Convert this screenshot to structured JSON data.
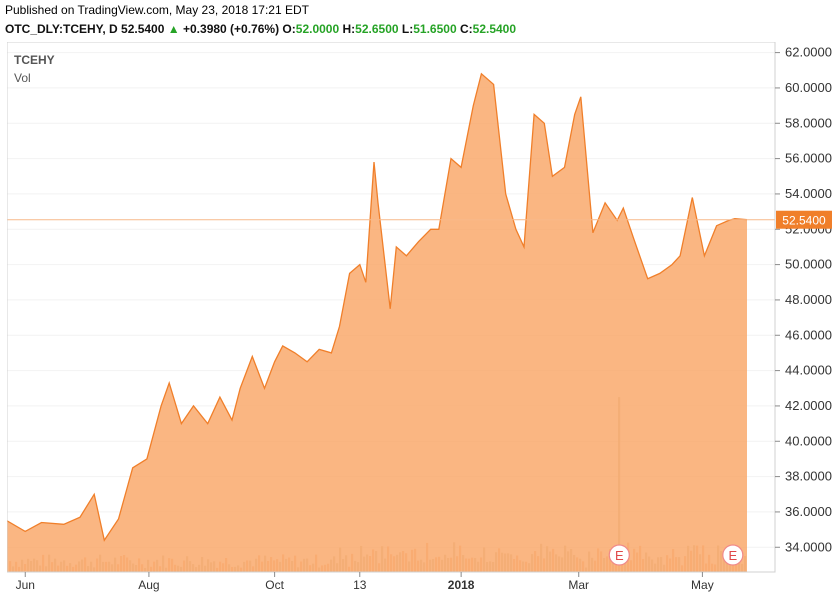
{
  "header": {
    "published": "Published on TradingView.com, May 23, 2018 17:21 EDT",
    "symbol": "OTC_DLY:TCEHY, D",
    "last": "52.5400",
    "change_arrow": "▲",
    "change": "+0.3980 (+0.76%)",
    "o_label": "O:",
    "o_value": "52.0000",
    "h_label": "H:",
    "h_value": "52.6500",
    "l_label": "L:",
    "l_value": "51.6500",
    "c_label": "C:",
    "c_value": "52.5400"
  },
  "legend": {
    "ticker": "TCEHY",
    "vol": "Vol"
  },
  "colors": {
    "area_fill": "#f9a96c",
    "area_line": "#f07f2a",
    "price_tag": "#f07f2a",
    "up": "#26a326"
  },
  "chart_data": {
    "type": "area",
    "ylim": [
      32.6,
      62.6
    ],
    "y_ticks": [
      "62.0000",
      "60.0000",
      "58.0000",
      "56.0000",
      "54.0000",
      "52.0000",
      "50.0000",
      "48.0000",
      "46.0000",
      "44.0000",
      "42.0000",
      "40.0000",
      "38.0000",
      "36.0000",
      "34.0000"
    ],
    "y_tick_values": [
      62,
      60,
      58,
      56,
      54,
      52,
      50,
      48,
      46,
      44,
      42,
      40,
      38,
      36,
      34
    ],
    "x_range": [
      "2017-05-23",
      "2018-05-23"
    ],
    "x_ticks": [
      {
        "label": "Jun",
        "date": "2017-06-01"
      },
      {
        "label": "Aug",
        "date": "2017-08-01"
      },
      {
        "label": "Oct",
        "date": "2017-10-02"
      },
      {
        "label": "13",
        "date": "2017-11-13"
      },
      {
        "label": "2018",
        "date": "2018-01-02",
        "bold": true
      },
      {
        "label": "Mar",
        "date": "2018-03-01"
      },
      {
        "label": "May",
        "date": "2018-05-01"
      }
    ],
    "last_price_label": "52.5400",
    "last_price": 52.54,
    "series": [
      {
        "x": [
          "2017-05-23",
          "2017-06-01",
          "2017-06-09",
          "2017-06-20",
          "2017-06-28",
          "2017-07-05",
          "2017-07-10",
          "2017-07-17",
          "2017-07-24",
          "2017-07-31",
          "2017-08-07",
          "2017-08-11",
          "2017-08-17",
          "2017-08-23",
          "2017-08-30",
          "2017-09-05",
          "2017-09-11",
          "2017-09-15",
          "2017-09-21",
          "2017-09-27",
          "2017-10-02",
          "2017-10-06",
          "2017-10-12",
          "2017-10-18",
          "2017-10-24",
          "2017-10-30",
          "2017-11-03",
          "2017-11-08",
          "2017-11-13",
          "2017-11-16",
          "2017-11-20",
          "2017-11-22",
          "2017-11-28",
          "2017-12-01",
          "2017-12-06",
          "2017-12-12",
          "2017-12-18",
          "2017-12-22",
          "2017-12-28",
          "2018-01-02",
          "2018-01-08",
          "2018-01-12",
          "2018-01-18",
          "2018-01-24",
          "2018-01-29",
          "2018-02-02",
          "2018-02-07",
          "2018-02-12",
          "2018-02-16",
          "2018-02-22",
          "2018-02-27",
          "2018-03-02",
          "2018-03-08",
          "2018-03-14",
          "2018-03-20",
          "2018-03-23",
          "2018-03-28",
          "2018-04-04",
          "2018-04-10",
          "2018-04-16",
          "2018-04-20",
          "2018-04-26",
          "2018-05-02",
          "2018-05-08",
          "2018-05-14",
          "2018-05-17",
          "2018-05-23"
        ],
        "y": [
          35.5,
          34.9,
          35.4,
          35.3,
          35.7,
          37.0,
          34.4,
          35.6,
          38.5,
          39.0,
          42.0,
          43.3,
          41.0,
          42.0,
          41.0,
          42.5,
          41.2,
          43.0,
          44.8,
          43.0,
          44.5,
          45.4,
          45.0,
          44.5,
          45.2,
          45.0,
          46.5,
          49.5,
          50.0,
          49.0,
          55.8,
          53.5,
          47.5,
          51.0,
          50.5,
          51.3,
          52.0,
          52.0,
          56.0,
          55.5,
          59.0,
          60.8,
          60.2,
          54.0,
          52.0,
          51.0,
          58.5,
          58.0,
          55.0,
          55.5,
          58.5,
          59.5,
          51.8,
          53.5,
          52.5,
          53.2,
          51.5,
          49.2,
          49.5,
          50.0,
          50.5,
          53.8,
          50.5,
          52.2,
          52.5,
          52.6,
          52.54
        ],
        "volume_max_ratio": 0.33,
        "volume_spike_date": "2018-03-20"
      }
    ],
    "earnings_markers": [
      {
        "label": "E",
        "date": "2018-03-21"
      },
      {
        "label": "E",
        "date": "2018-05-16"
      }
    ]
  }
}
